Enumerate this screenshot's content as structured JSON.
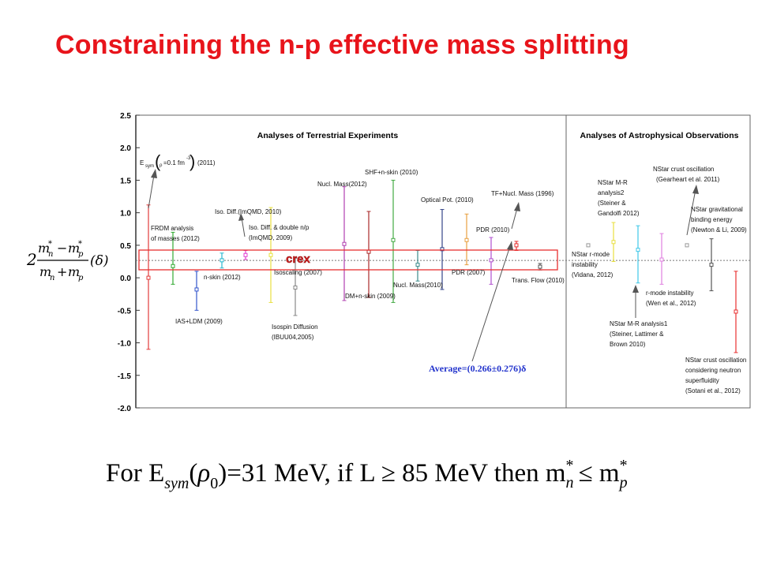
{
  "slide": {
    "title": "Constraining the n-p effective mass splitting",
    "bottom_formula": {
      "text": "For E_sym(ρ_0)=31 MeV, if L ≥ 85 MeV then m*_n ≤ m*_p",
      "part_for": "For E",
      "part_sym": "sym",
      "part_rho": "(ρ",
      "part_zero": "0",
      "part_mid": ")=31 MeV, if L ≥ 85 MeV then m",
      "part_le": "≤ m",
      "sub_n": "n",
      "sub_p": "p",
      "star": "*"
    },
    "ylabel_formula": {
      "two": "2",
      "num": "m*n − m*p",
      "den": "mn + mp",
      "delta": "(δ)"
    },
    "crex_label": "crex"
  },
  "chart_data": {
    "type": "scatter",
    "ylim": [
      -2.0,
      2.5
    ],
    "yticks": [
      "2.5",
      "2.0",
      "1.5",
      "1.0",
      "0.5",
      "0.0",
      "-0.5",
      "-1.0",
      "-1.5",
      "-2.0"
    ],
    "grid": false,
    "panels": [
      "Analyses of Terrestrial Experiments",
      "Analyses of Astrophysical Observations"
    ],
    "average_text": "Average=(0.266±0.276)δ",
    "average_value": 0.266,
    "average_error": 0.276,
    "series": [
      {
        "label": "E_sym(ρ=0.1 fm^-3)(2011)",
        "value": 0.0,
        "low": -1.1,
        "high": 1.12,
        "color": "#e33b3b"
      },
      {
        "label": "FRDM analysis of masses (2012)",
        "value": 0.18,
        "low": -0.1,
        "high": 0.7,
        "color": "#33aa33"
      },
      {
        "label": "IAS+LDM (2009)",
        "value": -0.18,
        "low": -0.5,
        "high": 0.1,
        "color": "#3355cc"
      },
      {
        "label": "n-skin (2012)",
        "value": 0.27,
        "low": 0.15,
        "high": 0.38,
        "color": "#2ab8d0"
      },
      {
        "label": "Iso. Diff.(ImQMD, 2010) / Iso. Diff. & double n/p (ImQMD, 2009)",
        "value": 0.35,
        "low": 0.28,
        "high": 0.42,
        "color": "#e040d0"
      },
      {
        "label": "Isospin Diffusion (IBUU04,2005)",
        "value": 0.35,
        "low": -0.38,
        "high": 1.08,
        "color": "#e8e040"
      },
      {
        "label": "Isoscaling (2007)",
        "value": -0.15,
        "low": -0.58,
        "high": 0.3,
        "color": "#888888"
      },
      {
        "label": "Nucl. Mass(2012)",
        "value": 0.52,
        "low": -0.35,
        "high": 1.4,
        "color": "#b040b0"
      },
      {
        "label": "DM+n-skin (2009)",
        "value": 0.4,
        "low": -0.3,
        "high": 1.02,
        "color": "#aa2a2a"
      },
      {
        "label": "SHF+n-skin (2010)",
        "value": 0.58,
        "low": -0.38,
        "high": 1.5,
        "color": "#44aa44"
      },
      {
        "label": "Nucl. Mass(2010)",
        "value": 0.2,
        "low": -0.05,
        "high": 0.42,
        "color": "#3a8a8a"
      },
      {
        "label": "Optical Pot. (2010)",
        "value": 0.44,
        "low": -0.18,
        "high": 1.05,
        "color": "#334488"
      },
      {
        "label": "PDR (2007)",
        "value": 0.58,
        "low": 0.2,
        "high": 0.98,
        "color": "#e8a040"
      },
      {
        "label": "PDR (2010)",
        "value": 0.27,
        "low": -0.1,
        "high": 0.62,
        "color": "#b050d0"
      },
      {
        "label": "TF+Nucl. Mass (1996)",
        "value": 0.5,
        "low": 0.42,
        "high": 0.56,
        "color": "#e83030"
      },
      {
        "label": "Trans. Flow (2010)",
        "value": 0.17,
        "low": 0.12,
        "high": 0.22,
        "color": "#555555"
      },
      {
        "label": "NStar r-mode instability (Vidana, 2012)",
        "value": 0.5,
        "low": 0.5,
        "high": 0.5,
        "color": "#999999"
      },
      {
        "label": "NStar M-R analysis2 (Steiner & Gandolfi 2012)",
        "value": 0.55,
        "low": 0.25,
        "high": 0.85,
        "color": "#e8e040"
      },
      {
        "label": "NStar M-R analysis1 (Steiner, Lattimer & Brown 2010)",
        "value": 0.43,
        "low": -0.08,
        "high": 0.8,
        "color": "#40c8e8"
      },
      {
        "label": "r-mode instability (Wen et al., 2012)",
        "value": 0.28,
        "low": -0.1,
        "high": 0.68,
        "color": "#e080e0"
      },
      {
        "label": "NStar crust oscillation (Gearheart et al. 2011)",
        "value": 0.5,
        "low": 0.5,
        "high": 0.5,
        "color": "#999999"
      },
      {
        "label": "NStar gravitational binding energy (Newton & Li, 2009)",
        "value": 0.2,
        "low": -0.2,
        "high": 0.6,
        "color": "#555555"
      },
      {
        "label": "NStar crust oscillation considering neutron superfluidity (Sotani et al., 2012)",
        "value": -0.52,
        "low": -1.15,
        "high": 0.1,
        "color": "#e83030"
      }
    ],
    "annotations": [
      "E_sym(ρ=0.1 fm^-3)(2011)",
      "FRDM analysis",
      "of masses (2012)",
      "IAS+LDM (2009)",
      "n-skin (2012)",
      "Iso. Diff.(ImQMD, 2010)",
      "Iso. Diff.  & double n/p",
      "(ImQMD, 2009)",
      "Isoscaling (2007)",
      "Isospin Diffusion",
      "(IBUU04,2005)",
      "Nucl. Mass(2012)",
      "DM+n-skin (2009)",
      "SHF+n-skin (2010)",
      "Nucl. Mass(2010)",
      "Optical Pot. (2010)",
      "PDR (2007)",
      "PDR (2010)",
      "TF+Nucl. Mass (1996)",
      "Trans. Flow (2010)",
      "NStar r-mode",
      "instability",
      "(Vidana, 2012)",
      "NStar M-R",
      "analysis2",
      "(Steiner &",
      "Gandolfi 2012)",
      "NStar M-R analysis1",
      "(Steiner, Lattimer &",
      "Brown 2010)",
      "r-mode instability",
      "(Wen et al., 2012)",
      "NStar crust oscillation",
      "(Gearheart et al. 2011)",
      "NStar gravitational",
      "binding energy",
      "(Newton & Li, 2009)",
      "NStar crust oscillation",
      "considering neutron",
      "superfluidity",
      "(Sotani et al., 2012)"
    ]
  }
}
